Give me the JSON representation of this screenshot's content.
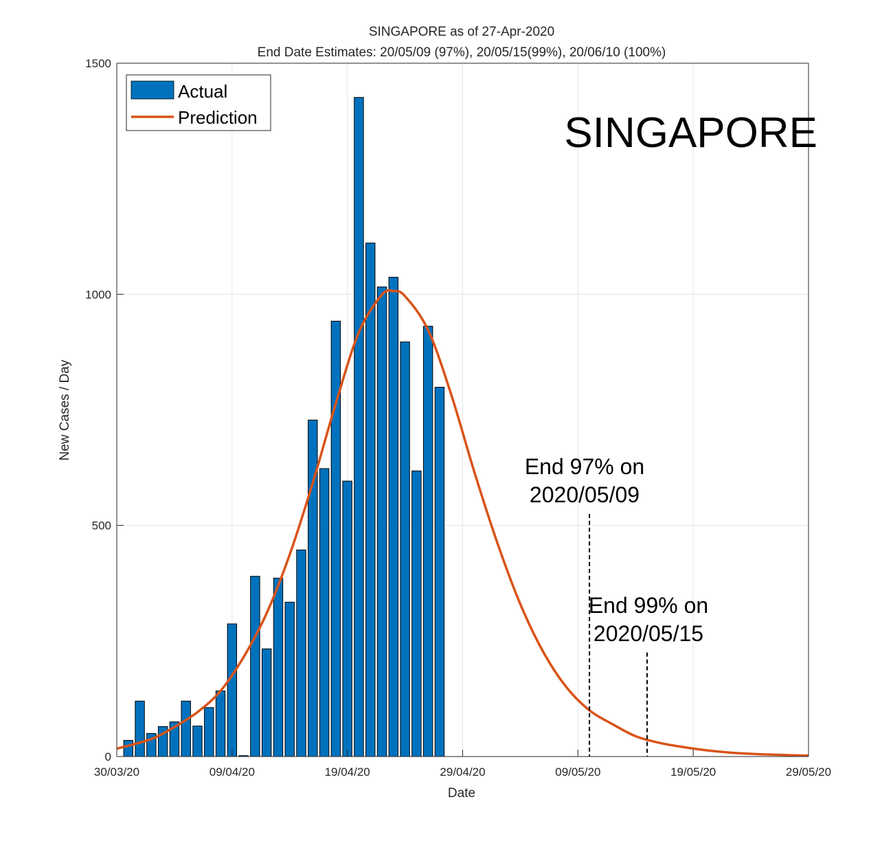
{
  "chart_data": {
    "type": "bar",
    "title": "SINGAPORE as of 27-Apr-2020",
    "subtitle": "End Date Estimates: 20/05/09 (97%), 20/05/15(99%), 20/06/10 (100%)",
    "xlabel": "Date",
    "ylabel": "New Cases / Day",
    "watermark_label": "SINGAPORE",
    "x_range": [
      "2020-03-30",
      "2020-05-29"
    ],
    "ylim": [
      0,
      1500
    ],
    "yticks": [
      0,
      500,
      1000,
      1500
    ],
    "xticks": [
      {
        "date": "2020-03-30",
        "label": "30/03/20"
      },
      {
        "date": "2020-04-09",
        "label": "09/04/20"
      },
      {
        "date": "2020-04-19",
        "label": "19/04/20"
      },
      {
        "date": "2020-04-29",
        "label": "29/04/20"
      },
      {
        "date": "2020-05-09",
        "label": "09/05/20"
      },
      {
        "date": "2020-05-19",
        "label": "19/05/20"
      },
      {
        "date": "2020-05-29",
        "label": "29/05/20"
      }
    ],
    "grid": true,
    "legend_position": "top-left",
    "series": [
      {
        "name": "Actual",
        "kind": "bar",
        "color": "#0072BD",
        "points": [
          {
            "date": "2020-03-31",
            "value": 35
          },
          {
            "date": "2020-04-01",
            "value": 120
          },
          {
            "date": "2020-04-02",
            "value": 50
          },
          {
            "date": "2020-04-03",
            "value": 65
          },
          {
            "date": "2020-04-04",
            "value": 75
          },
          {
            "date": "2020-04-05",
            "value": 120
          },
          {
            "date": "2020-04-06",
            "value": 66
          },
          {
            "date": "2020-04-07",
            "value": 106
          },
          {
            "date": "2020-04-08",
            "value": 142
          },
          {
            "date": "2020-04-09",
            "value": 287
          },
          {
            "date": "2020-04-10",
            "value": 2
          },
          {
            "date": "2020-04-11",
            "value": 390
          },
          {
            "date": "2020-04-12",
            "value": 233
          },
          {
            "date": "2020-04-13",
            "value": 386
          },
          {
            "date": "2020-04-14",
            "value": 334
          },
          {
            "date": "2020-04-15",
            "value": 447
          },
          {
            "date": "2020-04-16",
            "value": 728
          },
          {
            "date": "2020-04-17",
            "value": 623
          },
          {
            "date": "2020-04-18",
            "value": 942
          },
          {
            "date": "2020-04-19",
            "value": 596
          },
          {
            "date": "2020-04-20",
            "value": 1426
          },
          {
            "date": "2020-04-21",
            "value": 1111
          },
          {
            "date": "2020-04-22",
            "value": 1016
          },
          {
            "date": "2020-04-23",
            "value": 1037
          },
          {
            "date": "2020-04-24",
            "value": 897
          },
          {
            "date": "2020-04-25",
            "value": 618
          },
          {
            "date": "2020-04-26",
            "value": 931
          },
          {
            "date": "2020-04-27",
            "value": 799
          }
        ]
      },
      {
        "name": "Prediction",
        "kind": "line",
        "color": "#D95319",
        "points": [
          {
            "date": "2020-03-30",
            "value": 17
          },
          {
            "date": "2020-04-02",
            "value": 38
          },
          {
            "date": "2020-04-04",
            "value": 64
          },
          {
            "date": "2020-04-06",
            "value": 96
          },
          {
            "date": "2020-04-08",
            "value": 142
          },
          {
            "date": "2020-04-10",
            "value": 215
          },
          {
            "date": "2020-04-12",
            "value": 310
          },
          {
            "date": "2020-04-14",
            "value": 437
          },
          {
            "date": "2020-04-16",
            "value": 592
          },
          {
            "date": "2020-04-18",
            "value": 764
          },
          {
            "date": "2020-04-20",
            "value": 918
          },
          {
            "date": "2020-04-22",
            "value": 999
          },
          {
            "date": "2020-04-23",
            "value": 1007
          },
          {
            "date": "2020-04-24",
            "value": 996
          },
          {
            "date": "2020-04-26",
            "value": 923
          },
          {
            "date": "2020-04-28",
            "value": 784
          },
          {
            "date": "2020-04-30",
            "value": 617
          },
          {
            "date": "2020-05-02",
            "value": 463
          },
          {
            "date": "2020-05-04",
            "value": 330
          },
          {
            "date": "2020-05-06",
            "value": 226
          },
          {
            "date": "2020-05-08",
            "value": 150
          },
          {
            "date": "2020-05-10",
            "value": 100
          },
          {
            "date": "2020-05-12",
            "value": 70
          },
          {
            "date": "2020-05-14",
            "value": 44
          },
          {
            "date": "2020-05-16",
            "value": 30
          },
          {
            "date": "2020-05-18",
            "value": 21
          },
          {
            "date": "2020-05-20",
            "value": 14
          },
          {
            "date": "2020-05-22",
            "value": 9
          },
          {
            "date": "2020-05-24",
            "value": 6
          },
          {
            "date": "2020-05-26",
            "value": 4
          },
          {
            "date": "2020-05-29",
            "value": 2
          }
        ]
      }
    ],
    "annotations": [
      {
        "line1": "End 97% on",
        "line2": "2020/05/09",
        "date": "2020-05-10",
        "line_top": 525
      },
      {
        "line1": "End 99% on",
        "line2": "2020/05/15",
        "date": "2020-05-15",
        "line_top": 225
      }
    ]
  }
}
